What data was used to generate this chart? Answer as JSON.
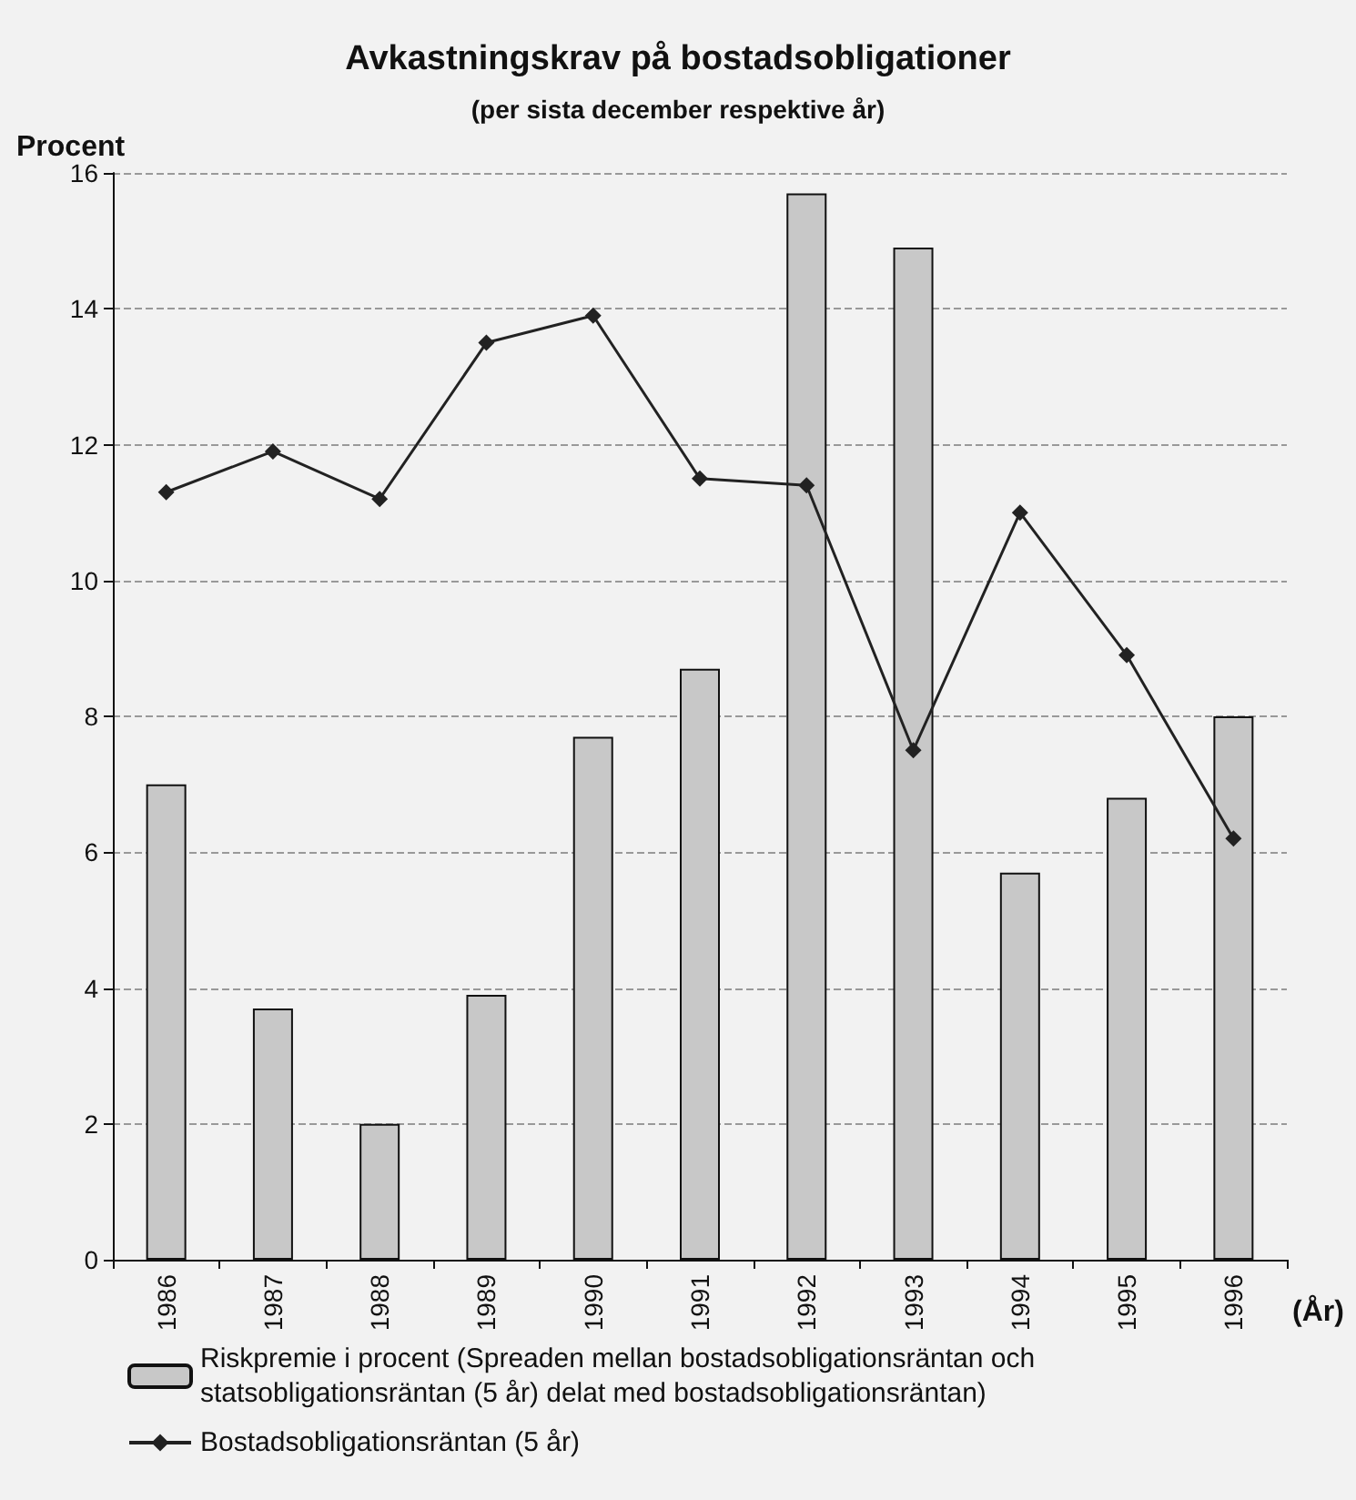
{
  "chart_data": {
    "type": "bar",
    "title": "Avkastningskrav på bostadsobligationer",
    "subtitle": "(per sista december respektive år)",
    "ylabel": "Procent",
    "xlabel": "(År)",
    "categories": [
      "1986",
      "1987",
      "1988",
      "1989",
      "1990",
      "1991",
      "1992",
      "1993",
      "1994",
      "1995",
      "1996"
    ],
    "series": [
      {
        "name": "Riskpremie i procent (Spreaden mellan bostadsobligationsräntan och statsobligationsräntan (5 år) delat med bostadsobligationsräntan)",
        "color": "#c8c8c8",
        "values": [
          7.0,
          3.7,
          2.0,
          3.9,
          7.7,
          8.7,
          15.7,
          14.9,
          5.7,
          6.8,
          8.0
        ]
      },
      {
        "name": "Bostadsobligationsräntan (5 år)",
        "type": "line",
        "color": "#222222",
        "marker": "diamond",
        "values": [
          11.3,
          11.9,
          11.2,
          13.5,
          13.9,
          11.5,
          11.4,
          7.5,
          11.0,
          8.9,
          6.2
        ]
      }
    ],
    "ylim": [
      0,
      16
    ],
    "yticks": [
      0,
      2,
      4,
      6,
      8,
      10,
      12,
      14,
      16
    ],
    "grid": "y",
    "legend": "bottom"
  }
}
